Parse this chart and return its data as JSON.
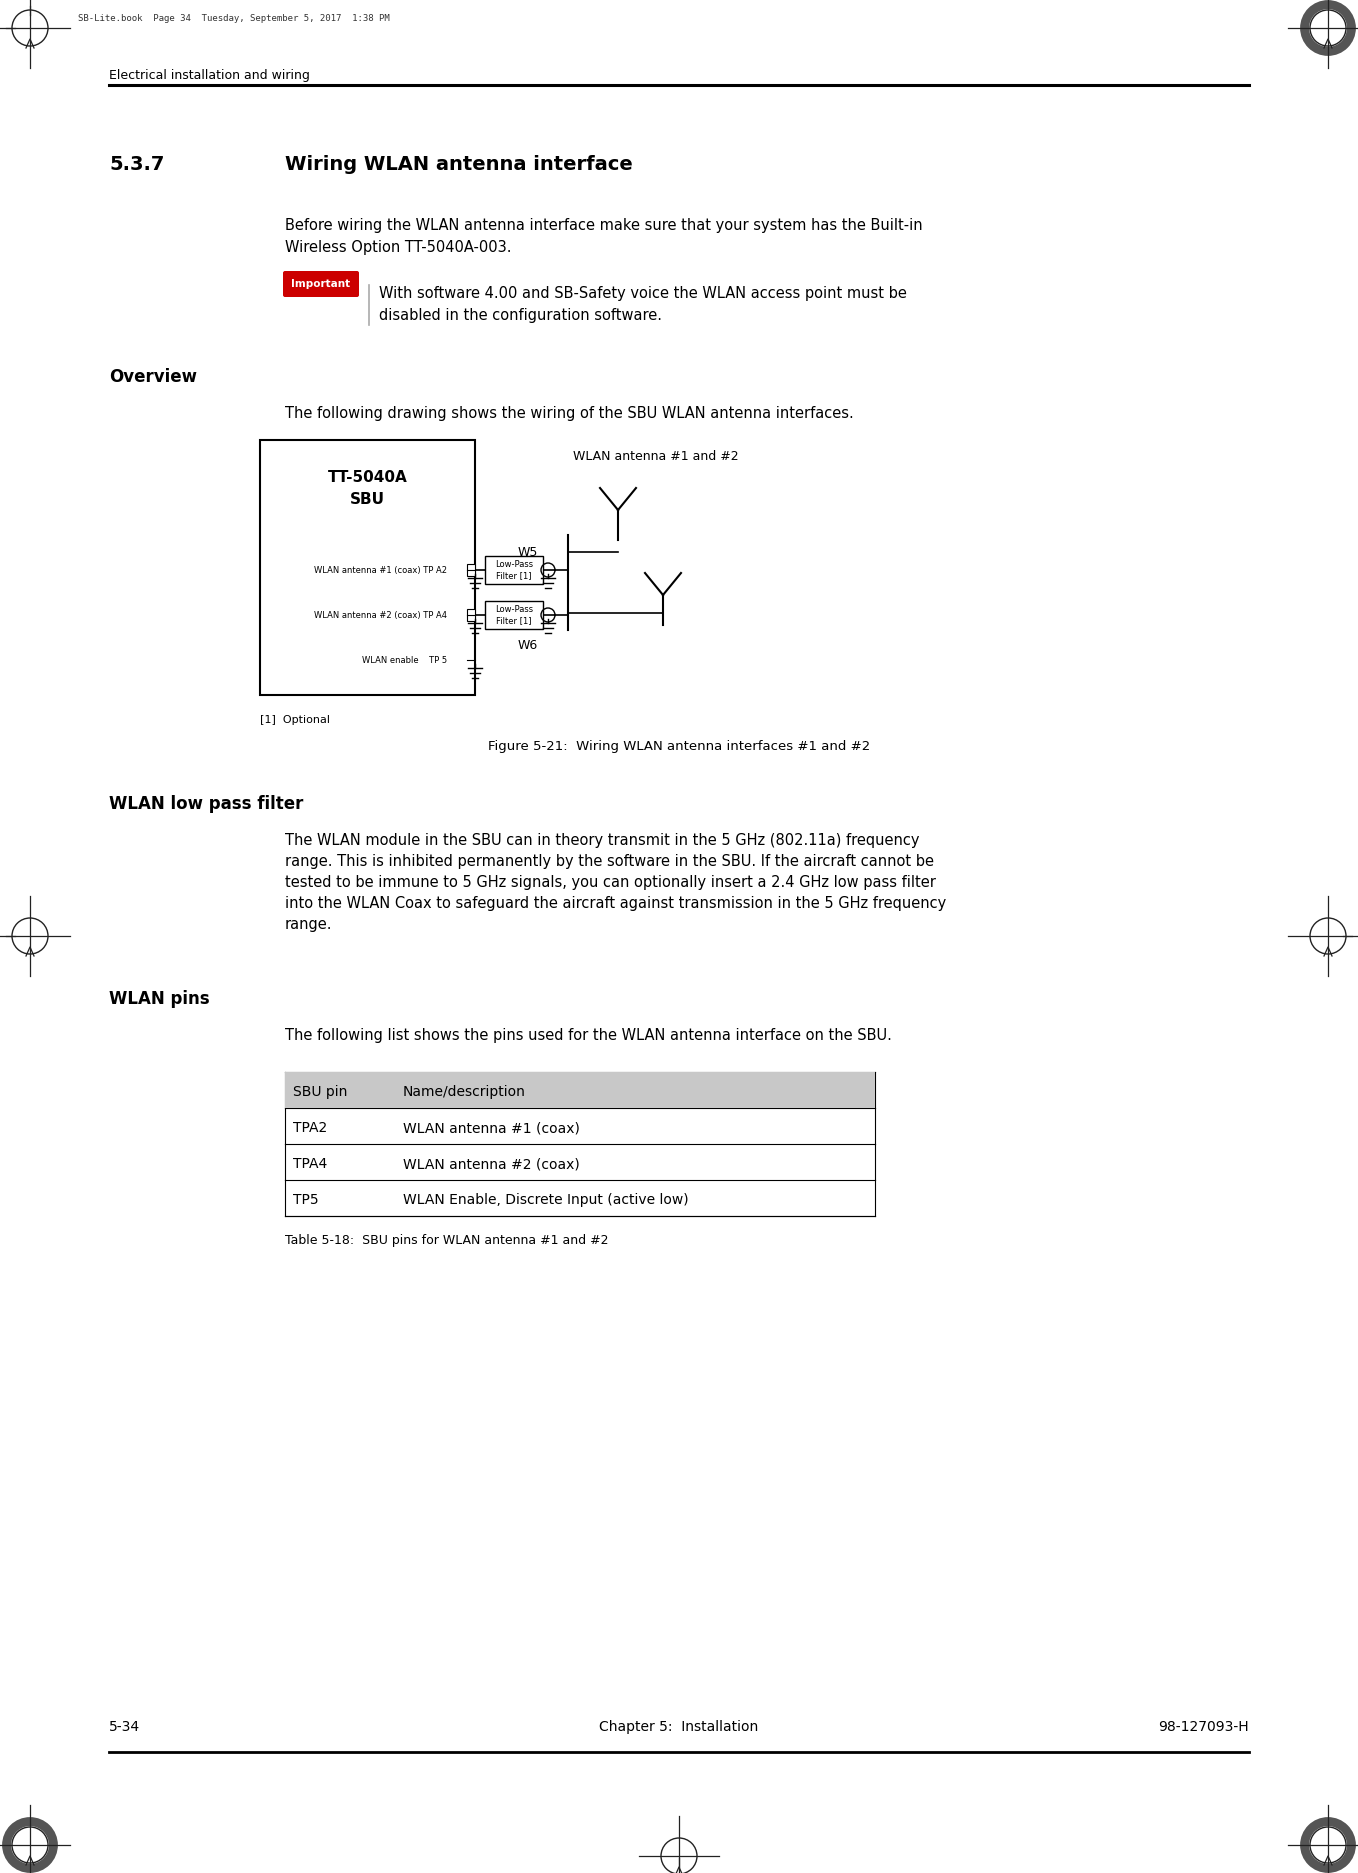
{
  "page_header_text": "Electrical installation and wiring",
  "header_book_text": "SB-Lite.book  Page 34  Tuesday, September 5, 2017  1:38 PM",
  "section_number": "5.3.7",
  "section_title": "Wiring WLAN antenna interface",
  "intro_line1": "Before wiring the WLAN antenna interface make sure that your system has the Built-in",
  "intro_line2": "Wireless Option TT-5040A-003.",
  "important_label": "Important",
  "important_line1": "With software 4.00 and SB-Safety voice the WLAN access point must be",
  "important_line2": "disabled in the configuration software.",
  "overview_title": "Overview",
  "overview_text": "The following drawing shows the wiring of the SBU WLAN antenna interfaces.",
  "figure_caption": "Figure 5-21:  Wiring WLAN antenna interfaces #1 and #2",
  "figure_box_title1": "TT-5040A",
  "figure_box_title2": "SBU",
  "figure_label1": "WLAN antenna #1 (coax) TP A2",
  "figure_label2": "WLAN antenna #2 (coax) TP A4",
  "figure_label3": "WLAN enable    TP 5",
  "figure_filter1": "Low-Pass\nFilter [1]",
  "figure_filter2": "Low-Pass\nFilter [1]",
  "figure_w5": "W5",
  "figure_w6": "W6",
  "figure_antenna_label": "WLAN antenna #1 and #2",
  "figure_note": "[1]  Optional",
  "wlan_filter_title": "WLAN low pass filter",
  "wlan_filter_line1": "The WLAN module in the SBU can in theory transmit in the 5 GHz (802.11a) frequency",
  "wlan_filter_line2": "range. This is inhibited permanently by the software in the SBU. If the aircraft cannot be",
  "wlan_filter_line3": "tested to be immune to 5 GHz signals, you can optionally insert a 2.4 GHz low pass filter",
  "wlan_filter_line4": "into the WLAN Coax to safeguard the aircraft against transmission in the 5 GHz frequency",
  "wlan_filter_line5": "range.",
  "wlan_pins_title": "WLAN pins",
  "wlan_pins_text": "The following list shows the pins used for the WLAN antenna interface on the SBU.",
  "table_header": [
    "SBU pin",
    "Name/description"
  ],
  "table_rows": [
    [
      "TPA2",
      "WLAN antenna #1 (coax)"
    ],
    [
      "TPA4",
      "WLAN antenna #2 (coax)"
    ],
    [
      "TP5",
      "WLAN Enable, Discrete Input (active low)"
    ]
  ],
  "table_caption": "Table 5-18:  SBU pins for WLAN antenna #1 and #2",
  "footer_left": "5-34",
  "footer_center": "Chapter 5:  Installation",
  "footer_right": "98-127093-H",
  "bg_color": "#ffffff",
  "text_color": "#000000",
  "important_bg": "#cc0000",
  "important_text_color": "#ffffff",
  "table_header_bg": "#c8c8c8",
  "line_color": "#000000"
}
